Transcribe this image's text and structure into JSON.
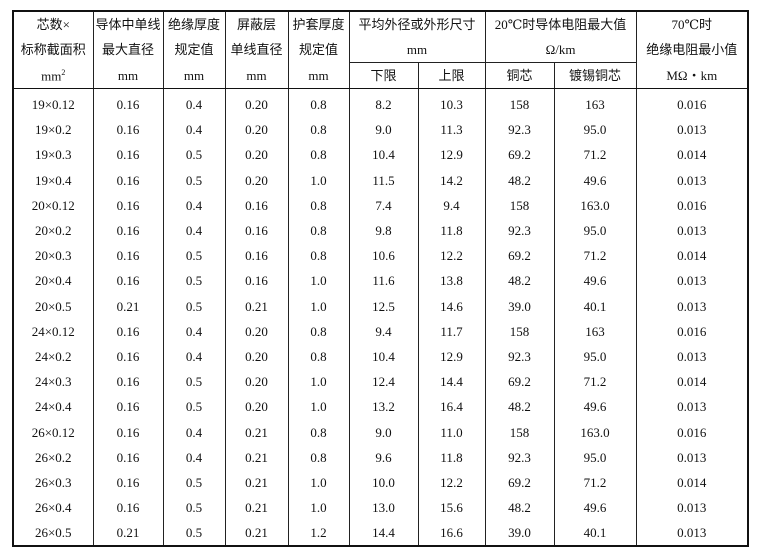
{
  "headers": {
    "spec": [
      "芯数×",
      "标称截面积",
      "mm²"
    ],
    "wire_dia": [
      "导体中单线",
      "最大直径",
      "mm"
    ],
    "insul": [
      "绝缘厚度",
      "规定值",
      "mm"
    ],
    "shield": [
      "屏蔽层",
      "单线直径",
      "mm"
    ],
    "sheath": [
      "护套厚度",
      "规定值",
      "mm"
    ],
    "outer": [
      "平均外径或外形尺寸",
      "mm"
    ],
    "outer_sub": [
      "下限",
      "上限"
    ],
    "resist": [
      "20℃时导体电阻最大值",
      "Ω/km"
    ],
    "resist_sub": [
      "铜芯",
      "镀锡铜芯"
    ],
    "insres": [
      "70℃时",
      "绝缘电阻最小值",
      "MΩ・km"
    ]
  },
  "rows": [
    [
      "19×0.12",
      "0.16",
      "0.4",
      "0.20",
      "0.8",
      "8.2",
      "10.3",
      "158",
      "163",
      "0.016"
    ],
    [
      "19×0.2",
      "0.16",
      "0.4",
      "0.20",
      "0.8",
      "9.0",
      "11.3",
      "92.3",
      "95.0",
      "0.013"
    ],
    [
      "19×0.3",
      "0.16",
      "0.5",
      "0.20",
      "0.8",
      "10.4",
      "12.9",
      "69.2",
      "71.2",
      "0.014"
    ],
    [
      "19×0.4",
      "0.16",
      "0.5",
      "0.20",
      "1.0",
      "11.5",
      "14.2",
      "48.2",
      "49.6",
      "0.013"
    ],
    [
      "20×0.12",
      "0.16",
      "0.4",
      "0.16",
      "0.8",
      "7.4",
      "9.4",
      "158",
      "163.0",
      "0.016"
    ],
    [
      "20×0.2",
      "0.16",
      "0.4",
      "0.16",
      "0.8",
      "9.8",
      "11.8",
      "92.3",
      "95.0",
      "0.013"
    ],
    [
      "20×0.3",
      "0.16",
      "0.5",
      "0.16",
      "0.8",
      "10.6",
      "12.2",
      "69.2",
      "71.2",
      "0.014"
    ],
    [
      "20×0.4",
      "0.16",
      "0.5",
      "0.16",
      "1.0",
      "11.6",
      "13.8",
      "48.2",
      "49.6",
      "0.013"
    ],
    [
      "20×0.5",
      "0.21",
      "0.5",
      "0.21",
      "1.0",
      "12.5",
      "14.6",
      "39.0",
      "40.1",
      "0.013"
    ],
    [
      "24×0.12",
      "0.16",
      "0.4",
      "0.20",
      "0.8",
      "9.4",
      "11.7",
      "158",
      "163",
      "0.016"
    ],
    [
      "24×0.2",
      "0.16",
      "0.4",
      "0.20",
      "0.8",
      "10.4",
      "12.9",
      "92.3",
      "95.0",
      "0.013"
    ],
    [
      "24×0.3",
      "0.16",
      "0.5",
      "0.20",
      "1.0",
      "12.4",
      "14.4",
      "69.2",
      "71.2",
      "0.014"
    ],
    [
      "24×0.4",
      "0.16",
      "0.5",
      "0.20",
      "1.0",
      "13.2",
      "16.4",
      "48.2",
      "49.6",
      "0.013"
    ],
    [
      "26×0.12",
      "0.16",
      "0.4",
      "0.21",
      "0.8",
      "9.0",
      "11.0",
      "158",
      "163.0",
      "0.016"
    ],
    [
      "26×0.2",
      "0.16",
      "0.4",
      "0.21",
      "0.8",
      "9.6",
      "11.8",
      "92.3",
      "95.0",
      "0.013"
    ],
    [
      "26×0.3",
      "0.16",
      "0.5",
      "0.21",
      "1.0",
      "10.0",
      "12.2",
      "69.2",
      "71.2",
      "0.014"
    ],
    [
      "26×0.4",
      "0.16",
      "0.5",
      "0.21",
      "1.0",
      "13.0",
      "15.6",
      "48.2",
      "49.6",
      "0.013"
    ],
    [
      "26×0.5",
      "0.21",
      "0.5",
      "0.21",
      "1.2",
      "14.4",
      "16.6",
      "39.0",
      "40.1",
      "0.013"
    ]
  ]
}
